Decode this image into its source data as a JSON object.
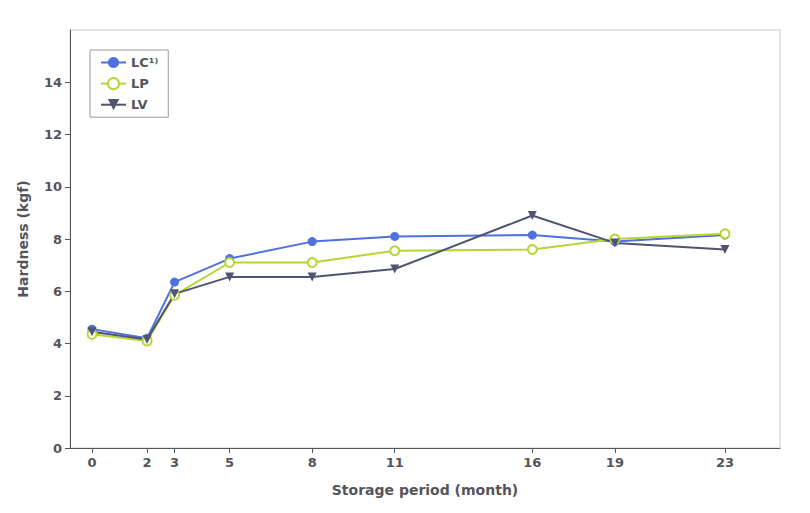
{
  "chart_data": {
    "type": "line",
    "x": [
      0,
      2,
      3,
      5,
      8,
      11,
      16,
      19,
      23
    ],
    "series": [
      {
        "name": "LC¹⁾",
        "marker": "circle",
        "values": [
          4.55,
          4.2,
          6.35,
          7.25,
          7.9,
          8.1,
          8.15,
          7.9,
          8.15
        ]
      },
      {
        "name": "LP",
        "marker": "open_circle",
        "values": [
          4.35,
          4.1,
          5.85,
          7.1,
          7.1,
          7.55,
          7.6,
          8.0,
          8.2
        ]
      },
      {
        "name": "LV",
        "marker": "triangle_down",
        "values": [
          4.45,
          4.15,
          5.9,
          6.55,
          6.55,
          6.85,
          8.9,
          7.85,
          7.6
        ]
      }
    ],
    "xlabel": "Storage period (month)",
    "ylabel": "Hardness (kgf)",
    "xlim": [
      -0.8,
      25.0
    ],
    "xticks": [
      0,
      2,
      3,
      5,
      8,
      11,
      16,
      19,
      23
    ],
    "ylim": [
      0,
      16
    ],
    "yticks": [
      0,
      2,
      4,
      6,
      8,
      10,
      12,
      14
    ],
    "grid": false,
    "legend": "upper left"
  }
}
